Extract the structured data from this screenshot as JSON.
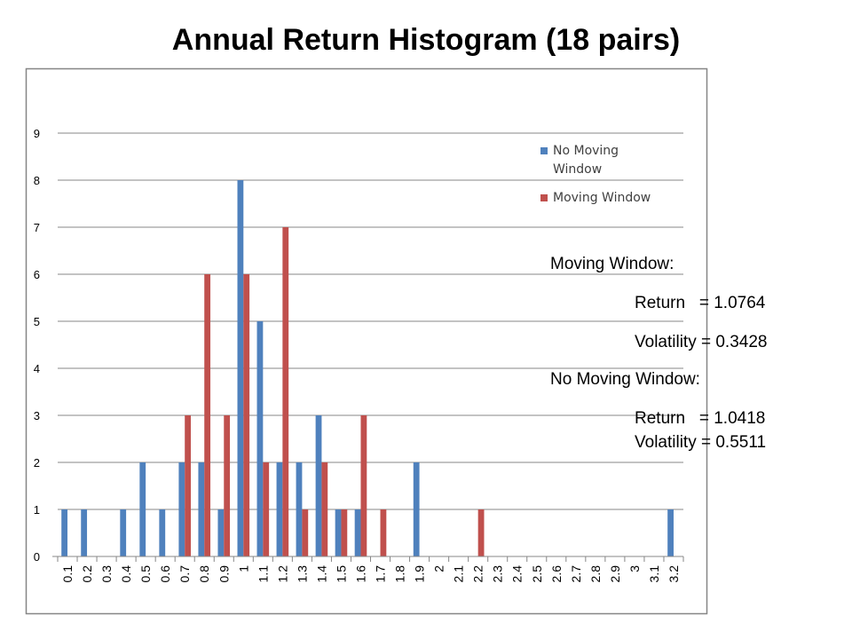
{
  "chart_data": {
    "type": "bar",
    "title": "Annual Return Histogram (18 pairs)",
    "xlabel": "",
    "ylabel": "",
    "ylim": [
      0,
      9
    ],
    "yticks": [
      0,
      1,
      2,
      3,
      4,
      5,
      6,
      7,
      8,
      9
    ],
    "grid": true,
    "legend": "top-right",
    "categories": [
      "0.1",
      "0.2",
      "0.3",
      "0.4",
      "0.5",
      "0.6",
      "0.7",
      "0.8",
      "0.9",
      "1",
      "1.1",
      "1.2",
      "1.3",
      "1.4",
      "1.5",
      "1.6",
      "1.7",
      "1.8",
      "1.9",
      "2",
      "2.1",
      "2.2",
      "2.3",
      "2.4",
      "2.5",
      "2.6",
      "2.7",
      "2.8",
      "2.9",
      "3",
      "3.1",
      "3.2"
    ],
    "series": [
      {
        "name": "No Moving Window",
        "color": "#4F81BD",
        "values": [
          1,
          1,
          0,
          1,
          2,
          1,
          2,
          2,
          1,
          8,
          5,
          2,
          2,
          3,
          1,
          1,
          0,
          0,
          2,
          0,
          0,
          0,
          0,
          0,
          0,
          0,
          0,
          0,
          0,
          0,
          0,
          1
        ]
      },
      {
        "name": "Moving Window",
        "color": "#C0504D",
        "values": [
          0,
          0,
          0,
          0,
          0,
          0,
          3,
          6,
          3,
          6,
          2,
          7,
          1,
          2,
          1,
          3,
          1,
          0,
          0,
          0,
          0,
          1,
          0,
          0,
          0,
          0,
          0,
          0,
          0,
          0,
          0,
          0
        ]
      }
    ]
  },
  "stats": {
    "moving_header": "Moving Window:",
    "moving_return": "Return   = 1.0764",
    "moving_volatility": "Volatility = 0.3428",
    "no_moving_header": "No Moving Window:",
    "no_moving_return": "Return   = 1.0418",
    "no_moving_volatility": "Volatility = 0.5511"
  },
  "legend_lines": [
    [
      "No Moving",
      "Window"
    ],
    [
      "Moving Window"
    ]
  ]
}
